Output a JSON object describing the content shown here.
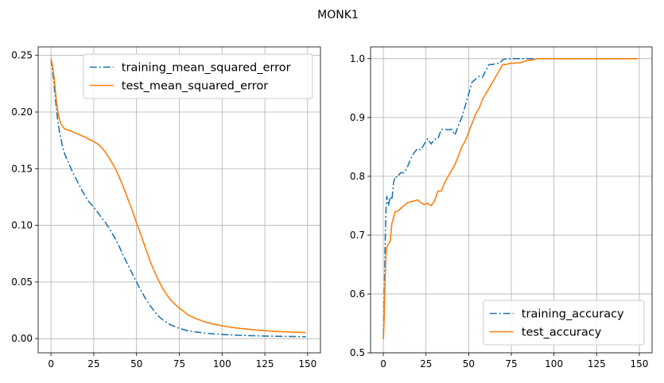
{
  "figure": {
    "title": "MONK1"
  },
  "chart_data": [
    {
      "type": "line",
      "title": "",
      "xlabel": "",
      "ylabel": "",
      "xlim": [
        -7.5,
        157.5
      ],
      "ylim": [
        -0.0125,
        0.2575
      ],
      "xticks": [
        0,
        25,
        50,
        75,
        100,
        125,
        150
      ],
      "yticks": [
        0.0,
        0.05,
        0.1,
        0.15,
        0.2,
        0.25
      ],
      "ytick_labels": [
        "0.00",
        "0.05",
        "0.10",
        "0.15",
        "0.20",
        "0.25"
      ],
      "grid": true,
      "legend_position": "top-right",
      "series": [
        {
          "name": "training_mean_squared_error",
          "color": "#1f77b4",
          "style": "dashdot",
          "x": [
            0,
            1,
            2,
            3,
            4,
            5,
            6,
            7,
            8,
            10,
            12,
            15,
            18,
            20,
            22,
            25,
            28,
            30,
            32,
            35,
            38,
            40,
            42,
            45,
            48,
            50,
            52,
            55,
            58,
            60,
            62,
            65,
            68,
            70,
            72,
            75,
            78,
            80,
            85,
            90,
            95,
            100,
            105,
            110,
            115,
            120,
            125,
            130,
            135,
            140,
            145,
            149
          ],
          "y": [
            0.247,
            0.235,
            0.22,
            0.205,
            0.192,
            0.182,
            0.175,
            0.168,
            0.163,
            0.156,
            0.149,
            0.14,
            0.131,
            0.126,
            0.121,
            0.116,
            0.11,
            0.106,
            0.102,
            0.095,
            0.087,
            0.081,
            0.074,
            0.065,
            0.056,
            0.05,
            0.044,
            0.036,
            0.029,
            0.025,
            0.021,
            0.017,
            0.014,
            0.012,
            0.011,
            0.009,
            0.0078,
            0.007,
            0.0058,
            0.0049,
            0.0042,
            0.0037,
            0.0033,
            0.003,
            0.0027,
            0.0025,
            0.0023,
            0.0021,
            0.002,
            0.0019,
            0.0018,
            0.0017
          ]
        },
        {
          "name": "test_mean_squared_error",
          "color": "#ff7f0e",
          "style": "solid",
          "x": [
            0,
            1,
            2,
            3,
            4,
            5,
            6,
            7,
            8,
            10,
            12,
            15,
            18,
            20,
            22,
            25,
            28,
            30,
            32,
            35,
            38,
            40,
            42,
            45,
            48,
            50,
            52,
            55,
            58,
            60,
            62,
            65,
            68,
            70,
            72,
            75,
            78,
            80,
            85,
            90,
            95,
            100,
            105,
            110,
            115,
            120,
            125,
            130,
            135,
            140,
            145,
            149
          ],
          "y": [
            0.247,
            0.24,
            0.228,
            0.212,
            0.2,
            0.193,
            0.189,
            0.187,
            0.185,
            0.184,
            0.183,
            0.181,
            0.179,
            0.178,
            0.176,
            0.174,
            0.171,
            0.168,
            0.164,
            0.157,
            0.149,
            0.142,
            0.135,
            0.123,
            0.111,
            0.102,
            0.094,
            0.081,
            0.068,
            0.061,
            0.054,
            0.045,
            0.038,
            0.034,
            0.031,
            0.027,
            0.0235,
            0.021,
            0.0175,
            0.0148,
            0.0128,
            0.0113,
            0.0101,
            0.0091,
            0.0083,
            0.0076,
            0.007,
            0.0065,
            0.0061,
            0.0058,
            0.0055,
            0.0053
          ]
        }
      ]
    },
    {
      "type": "line",
      "title": "",
      "xlabel": "",
      "ylabel": "",
      "xlim": [
        -7.5,
        157.5
      ],
      "ylim": [
        0.5,
        1.02
      ],
      "xticks": [
        0,
        25,
        50,
        75,
        100,
        125,
        150
      ],
      "yticks": [
        0.5,
        0.6,
        0.7,
        0.8,
        0.9,
        1.0
      ],
      "ytick_labels": [
        "0.5",
        "0.6",
        "0.7",
        "0.8",
        "0.9",
        "1.0"
      ],
      "grid": true,
      "legend_position": "bottom-right",
      "series": [
        {
          "name": "training_accuracy",
          "color": "#1f77b4",
          "style": "dashdot",
          "x": [
            0,
            0.5,
            1,
            1.5,
            2,
            3,
            4,
            5,
            6,
            7,
            8,
            10,
            12,
            14,
            16,
            18,
            20,
            22,
            24,
            26,
            28,
            30,
            32,
            34,
            36,
            38,
            40,
            42,
            44,
            46,
            48,
            50,
            52,
            54,
            56,
            58,
            60,
            62,
            64,
            66,
            68,
            70,
            72,
            74,
            76,
            78,
            80,
            85,
            90,
            100,
            110,
            120,
            130,
            140,
            149
          ],
          "y": [
            0.53,
            0.58,
            0.68,
            0.74,
            0.766,
            0.75,
            0.765,
            0.76,
            0.79,
            0.8,
            0.798,
            0.806,
            0.806,
            0.815,
            0.83,
            0.84,
            0.847,
            0.845,
            0.855,
            0.864,
            0.855,
            0.863,
            0.864,
            0.88,
            0.88,
            0.879,
            0.88,
            0.87,
            0.887,
            0.9,
            0.92,
            0.94,
            0.96,
            0.965,
            0.97,
            0.968,
            0.98,
            0.99,
            0.99,
            0.992,
            0.992,
            0.998,
            1.0,
            1.0,
            1.0,
            1.0,
            1.0,
            1.0,
            1.0,
            1.0,
            1.0,
            1.0,
            1.0,
            1.0,
            1.0
          ]
        },
        {
          "name": "test_accuracy",
          "color": "#ff7f0e",
          "style": "solid",
          "x": [
            0,
            0.5,
            1,
            1.5,
            2,
            3,
            4,
            5,
            6,
            7,
            8,
            10,
            12,
            14,
            16,
            18,
            20,
            22,
            24,
            26,
            28,
            30,
            32,
            34,
            36,
            38,
            40,
            42,
            44,
            46,
            48,
            50,
            52,
            54,
            56,
            58,
            60,
            62,
            64,
            66,
            68,
            70,
            72,
            74,
            76,
            78,
            80,
            82,
            85,
            88,
            90,
            95,
            100,
            110,
            120,
            130,
            140,
            149
          ],
          "y": [
            0.523,
            0.56,
            0.62,
            0.665,
            0.68,
            0.685,
            0.69,
            0.72,
            0.73,
            0.74,
            0.74,
            0.745,
            0.75,
            0.755,
            0.757,
            0.758,
            0.76,
            0.755,
            0.752,
            0.754,
            0.75,
            0.758,
            0.775,
            0.775,
            0.79,
            0.8,
            0.81,
            0.82,
            0.835,
            0.85,
            0.86,
            0.875,
            0.89,
            0.905,
            0.915,
            0.93,
            0.94,
            0.95,
            0.96,
            0.97,
            0.98,
            0.99,
            0.99,
            0.992,
            0.992,
            0.993,
            0.993,
            0.995,
            0.997,
            0.998,
            1.0,
            1.0,
            1.0,
            1.0,
            1.0,
            1.0,
            1.0,
            1.0
          ]
        }
      ]
    }
  ]
}
